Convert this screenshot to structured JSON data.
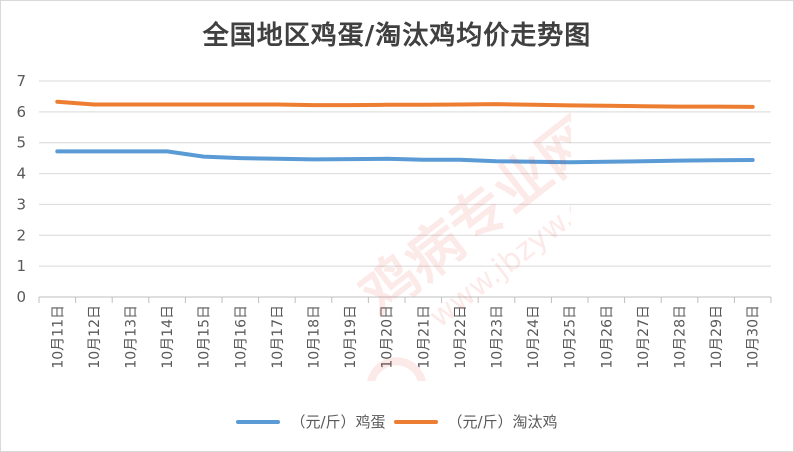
{
  "chart_data": {
    "type": "line",
    "title": "全国地区鸡蛋/淘汰鸡均价走势图",
    "categories": [
      "10月11日",
      "10月12日",
      "10月13日",
      "10月14日",
      "10月15日",
      "10月16日",
      "10月17日",
      "10月18日",
      "10月19日",
      "10月20日",
      "10月21日",
      "10月22日",
      "10月23日",
      "10月24日",
      "10月25日",
      "10月26日",
      "10月27日",
      "10月28日",
      "10月29日",
      "10月30日"
    ],
    "series": [
      {
        "name": "（元/斤）鸡蛋",
        "color": "#5b9bd5",
        "values": [
          4.72,
          4.72,
          4.72,
          4.72,
          4.55,
          4.5,
          4.48,
          4.46,
          4.47,
          4.48,
          4.45,
          4.45,
          4.4,
          4.38,
          4.37,
          4.38,
          4.4,
          4.42,
          4.43,
          4.44
        ]
      },
      {
        "name": "（元/斤）淘汰鸡",
        "color": "#ed7d31",
        "values": [
          6.33,
          6.24,
          6.24,
          6.24,
          6.24,
          6.24,
          6.24,
          6.22,
          6.22,
          6.23,
          6.23,
          6.24,
          6.25,
          6.23,
          6.21,
          6.2,
          6.18,
          6.17,
          6.17,
          6.16
        ]
      }
    ],
    "ylim": [
      0,
      7
    ],
    "yticks": [
      "0",
      "1",
      "2",
      "3",
      "4",
      "5",
      "6",
      "7"
    ],
    "grid": true,
    "legend_position": "bottom"
  },
  "watermark": {
    "text": "鸡病专业网",
    "url": "www.jbzyw.com",
    "color": "#e53935"
  }
}
